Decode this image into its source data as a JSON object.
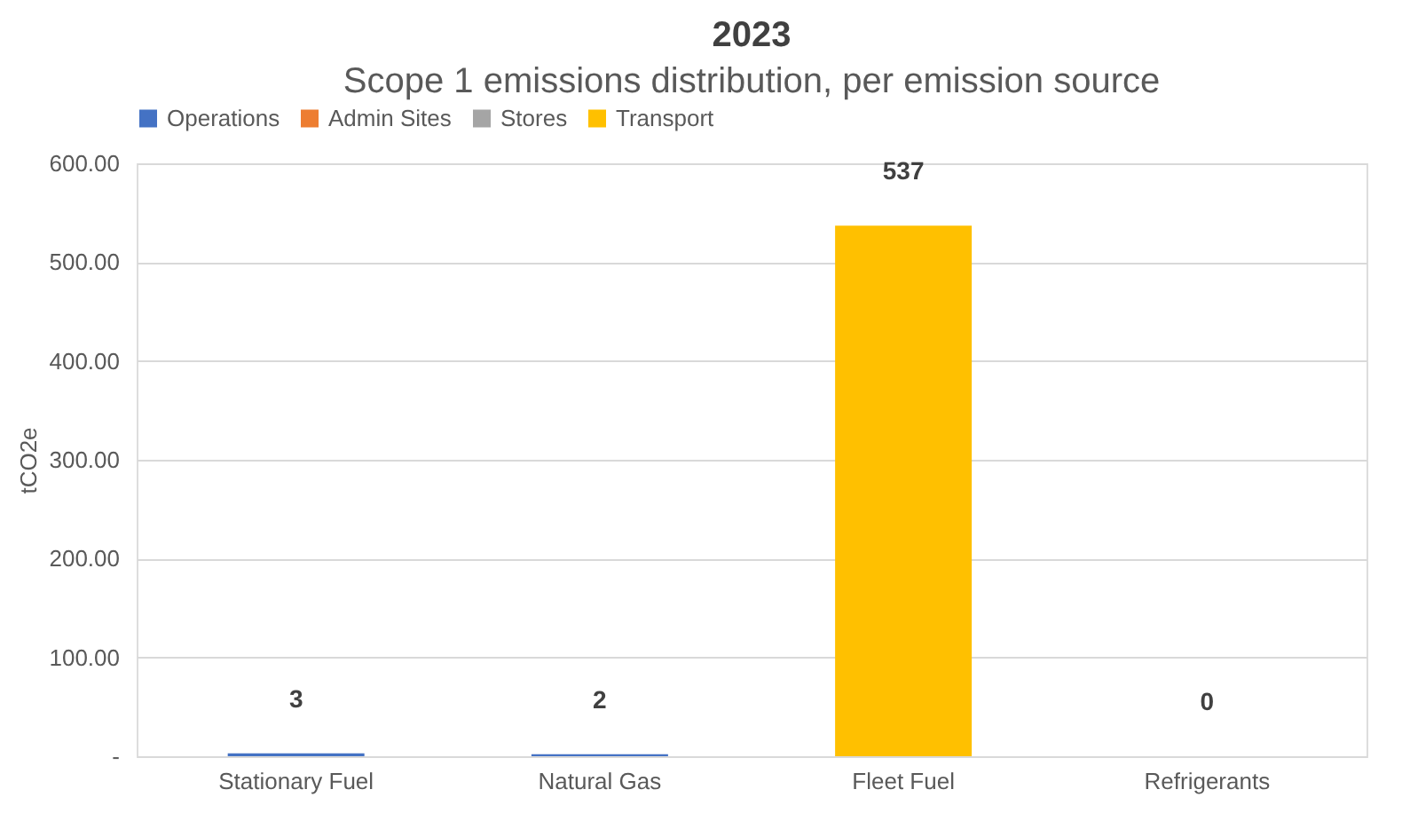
{
  "chart_data": {
    "type": "bar",
    "stacked": true,
    "title": "2023",
    "subtitle": "Scope 1 emissions distribution, per emission source",
    "ylabel": "tCO2e",
    "categories": [
      "Stationary Fuel",
      "Natural Gas",
      "Fleet Fuel",
      "Refrigerants"
    ],
    "series": [
      {
        "name": "Operations",
        "color": "#4472c4",
        "values": [
          3,
          2,
          0,
          0
        ]
      },
      {
        "name": "Admin Sites",
        "color": "#ed7d31",
        "values": [
          0,
          0,
          0,
          0
        ]
      },
      {
        "name": "Stores",
        "color": "#a5a5a5",
        "values": [
          0,
          0,
          0,
          0
        ]
      },
      {
        "name": "Transport",
        "color": "#ffc000",
        "values": [
          0,
          0,
          537,
          0
        ]
      }
    ],
    "totals": [
      "3",
      "2",
      "537",
      "0"
    ],
    "ylim": [
      0,
      600
    ],
    "yticks": [
      {
        "value": 0,
        "label": "-"
      },
      {
        "value": 100,
        "label": "100.00"
      },
      {
        "value": 200,
        "label": "200.00"
      },
      {
        "value": 300,
        "label": "300.00"
      },
      {
        "value": 400,
        "label": "400.00"
      },
      {
        "value": 500,
        "label": "500.00"
      },
      {
        "value": 600,
        "label": "600.00"
      }
    ],
    "grid": "y",
    "legend": "top"
  }
}
